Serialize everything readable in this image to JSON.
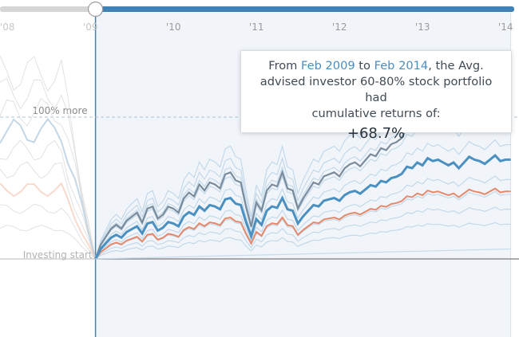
{
  "slider": {
    "handle": "range-start-handle"
  },
  "chart_data": {
    "type": "line",
    "x_ticks": [
      "'08",
      "'09",
      "'10",
      "'11",
      "'12",
      "'13",
      "'14"
    ],
    "x_tick_values": [
      2008,
      2009,
      2010,
      2011,
      2012,
      2013,
      2014
    ],
    "start_year": 2009.1,
    "end_year": 2014.1,
    "xlim": [
      2007.95,
      2014.2
    ],
    "ylim": [
      -0.05,
      1.45
    ],
    "reference_lines": [
      {
        "label": "100% more",
        "value": 1.0
      },
      {
        "label": "Investing start",
        "value": 0.0
      }
    ],
    "colors": {
      "advised": "#4a90c0",
      "market": "#7a8c9c",
      "benchmark": "#e4896b",
      "background_lines": "#bfd6e8",
      "pre_start": "#d5d5d5",
      "selected_band": "#f1f5fa",
      "slider_track": "#3e82b6"
    },
    "series": [
      {
        "key": "advised",
        "values": [
          0.0,
          0.07,
          0.11,
          0.15,
          0.17,
          0.15,
          0.19,
          0.21,
          0.23,
          0.18,
          0.25,
          0.26,
          0.2,
          0.22,
          0.26,
          0.25,
          0.23,
          0.3,
          0.33,
          0.31,
          0.37,
          0.34,
          0.38,
          0.37,
          0.35,
          0.42,
          0.43,
          0.39,
          0.38,
          0.26,
          0.16,
          0.28,
          0.24,
          0.34,
          0.37,
          0.36,
          0.43,
          0.35,
          0.34,
          0.25,
          0.3,
          0.34,
          0.38,
          0.37,
          0.41,
          0.42,
          0.43,
          0.41,
          0.45,
          0.47,
          0.48,
          0.46,
          0.49,
          0.52,
          0.51,
          0.55,
          0.54,
          0.57,
          0.58,
          0.6,
          0.65,
          0.64,
          0.68,
          0.66,
          0.71,
          0.69,
          0.7,
          0.68,
          0.66,
          0.68,
          0.64,
          0.68,
          0.72,
          0.7,
          0.69,
          0.67,
          0.7,
          0.73,
          0.69,
          0.7,
          0.7
        ],
        "line_values": [
          0.0,
          0.04,
          0.075,
          0.09,
          0.09,
          0.075,
          0.11,
          0.135,
          0.14,
          0.11,
          0.16,
          0.175,
          0.15,
          0.16,
          0.15,
          0.17,
          0.2,
          0.23,
          0.25,
          0.22,
          0.26,
          0.23,
          0.25,
          0.27,
          0.24,
          0.3,
          0.33,
          0.34,
          0.36,
          0.39,
          0.42,
          0.4,
          0.5,
          0.47,
          0.52,
          0.55,
          0.51,
          0.56,
          0.58,
          0.61,
          0.63,
          0.66,
          0.65,
          0.69,
          0.7,
          0.69
        ]
      }
    ],
    "selected_summary": {
      "from_label": "Feb 2009",
      "to_label": "Feb 2014",
      "portfolio": "Avg. advised investor 60-80% stock portfolio",
      "cumulative_return": "+68.7%"
    }
  },
  "tooltip": {
    "prefix": "From ",
    "from": "Feb 2009",
    "mid": " to ",
    "to": "Feb 2014",
    "line1_rest": ", the Avg.",
    "line2": "advised investor 60-80% stock portfolio had",
    "line3": "cumulative returns of:",
    "value": "+68.7%"
  }
}
